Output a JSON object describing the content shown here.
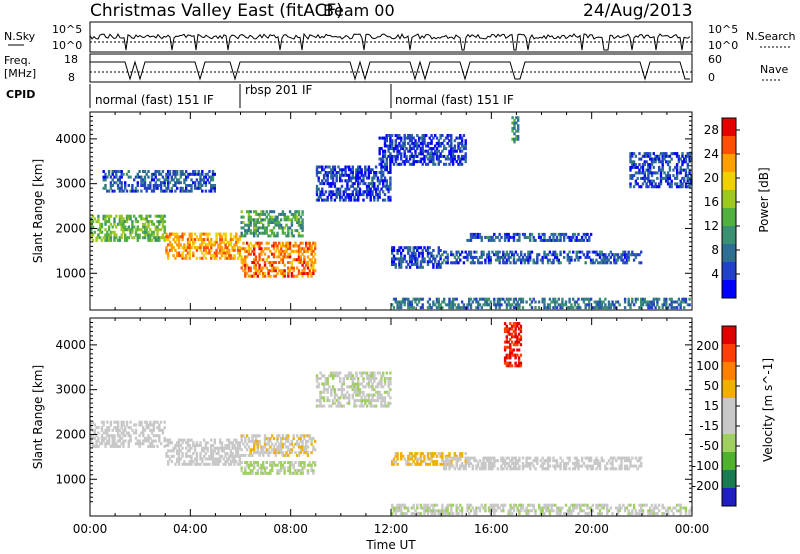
{
  "header": {
    "title": "Christmas Valley East (fitACF)",
    "beam": "Beam 00",
    "date": "24/Aug/2013"
  },
  "strips": {
    "nsky_label": "N.Sky",
    "nsky_ticks": [
      "10^5",
      "10^0"
    ],
    "nsearch_label": "N.Search",
    "nsearch_ticks": [
      "10^5",
      "10^0"
    ],
    "freq_label_1": "Freq.",
    "freq_label_2": "[MHz]",
    "freq_ticks": [
      "18",
      "8"
    ],
    "nave_label": "Nave",
    "nave_ticks": [
      "60",
      "0"
    ],
    "cpid_label": "CPID",
    "cpid_segments": [
      {
        "label": "normal (fast) 151 IF",
        "start_hour": 0
      },
      {
        "label": "rbsp 201 IF",
        "start_hour": 6
      },
      {
        "label": "normal (fast) 151 IF",
        "start_hour": 12
      }
    ]
  },
  "chart_data": [
    {
      "type": "heatmap",
      "title": "Power",
      "ylabel": "Slant Range [km]",
      "xlabel": "",
      "x_ticks": [
        "00:00",
        "04:00",
        "08:00",
        "12:00",
        "16:00",
        "20:00",
        "00:00"
      ],
      "xlim_hours": [
        0,
        24
      ],
      "y_ticks": [
        1000,
        2000,
        3000,
        4000
      ],
      "ylim": [
        180,
        4600
      ],
      "colorbar": {
        "label": "Power [dB]",
        "ticks": [
          4,
          8,
          12,
          16,
          20,
          24,
          28
        ],
        "range": [
          0,
          30
        ],
        "colors": [
          "#0000ff",
          "#2240c8",
          "#2e6e92",
          "#3a9070",
          "#52b040",
          "#9cc820",
          "#f0d000",
          "#ffa000",
          "#ff5000",
          "#e80000"
        ]
      },
      "echo_regions": [
        {
          "t0": 0.0,
          "t1": 3.0,
          "r0": 1700,
          "r1": 2300,
          "value": 14
        },
        {
          "t0": 3.0,
          "t1": 6.0,
          "r0": 1300,
          "r1": 1900,
          "value": 22
        },
        {
          "t0": 6.0,
          "t1": 9.0,
          "r0": 900,
          "r1": 1700,
          "value": 24
        },
        {
          "t0": 6.0,
          "t1": 8.5,
          "r0": 1800,
          "r1": 2400,
          "value": 12
        },
        {
          "t0": 0.5,
          "t1": 5.0,
          "r0": 2800,
          "r1": 3300,
          "value": 6
        },
        {
          "t0": 9.0,
          "t1": 12.0,
          "r0": 2600,
          "r1": 3400,
          "value": 4
        },
        {
          "t0": 11.5,
          "t1": 15.0,
          "r0": 3400,
          "r1": 4100,
          "value": 4
        },
        {
          "t0": 12.0,
          "t1": 14.0,
          "r0": 1100,
          "r1": 1600,
          "value": 5
        },
        {
          "t0": 14.0,
          "t1": 22.0,
          "r0": 1200,
          "r1": 1500,
          "value": 6
        },
        {
          "t0": 15.0,
          "t1": 20.0,
          "r0": 1700,
          "r1": 1900,
          "value": 6
        },
        {
          "t0": 12.0,
          "t1": 24.0,
          "r0": 200,
          "r1": 450,
          "value": 8
        },
        {
          "t0": 16.8,
          "t1": 17.1,
          "r0": 3900,
          "r1": 4500,
          "value": 10
        },
        {
          "t0": 21.5,
          "t1": 24.0,
          "r0": 2900,
          "r1": 3700,
          "value": 5
        }
      ]
    },
    {
      "type": "heatmap",
      "title": "Velocity",
      "ylabel": "Slant Range [km]",
      "xlabel": "Time UT",
      "x_ticks": [
        "00:00",
        "04:00",
        "08:00",
        "12:00",
        "16:00",
        "20:00",
        "00:00"
      ],
      "xlim_hours": [
        0,
        24
      ],
      "y_ticks": [
        1000,
        2000,
        3000,
        4000
      ],
      "ylim": [
        180,
        4600
      ],
      "colorbar": {
        "label": "Velocity [m s^-1]",
        "ticks": [
          200,
          100,
          50,
          15,
          -15,
          -50,
          -100,
          -200
        ],
        "range": [
          -250,
          250
        ],
        "colors": [
          "#2020c0",
          "#1a7a50",
          "#50b030",
          "#a0d060",
          "#c8c8c8",
          "#c8c8c8",
          "#f0b000",
          "#ff8000",
          "#ff4000",
          "#e00000"
        ]
      },
      "echo_regions": [
        {
          "t0": 0.0,
          "t1": 3.0,
          "r0": 1700,
          "r1": 2300,
          "value": 0
        },
        {
          "t0": 3.0,
          "t1": 6.0,
          "r0": 1300,
          "r1": 1900,
          "value": 5
        },
        {
          "t0": 6.0,
          "t1": 9.0,
          "r0": 1100,
          "r1": 1400,
          "value": -60
        },
        {
          "t0": 6.0,
          "t1": 9.0,
          "r0": 1500,
          "r1": 2000,
          "value": 40
        },
        {
          "t0": 9.0,
          "t1": 12.0,
          "r0": 2600,
          "r1": 3400,
          "value": -40
        },
        {
          "t0": 12.0,
          "t1": 15.0,
          "r0": 1300,
          "r1": 1600,
          "value": 60
        },
        {
          "t0": 14.0,
          "t1": 22.0,
          "r0": 1200,
          "r1": 1500,
          "value": 0
        },
        {
          "t0": 12.0,
          "t1": 24.0,
          "r0": 200,
          "r1": 450,
          "value": -40
        },
        {
          "t0": 16.5,
          "t1": 17.2,
          "r0": 3500,
          "r1": 4500,
          "value": 200
        }
      ]
    }
  ]
}
